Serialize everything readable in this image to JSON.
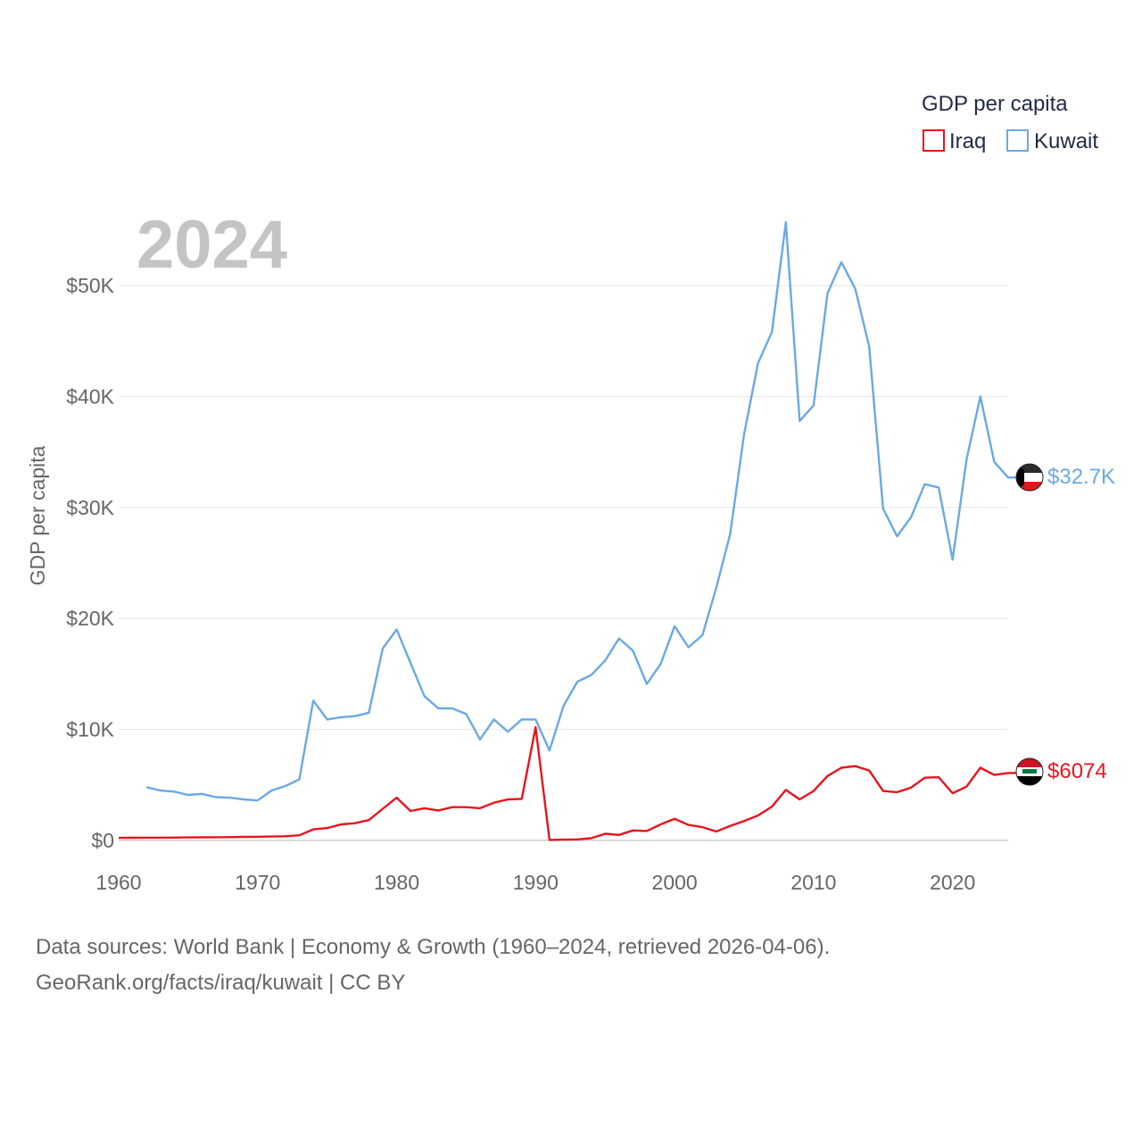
{
  "chart_data": {
    "type": "line",
    "title": "2024",
    "ylabel": "GDP per capita",
    "xlabel": "",
    "x_ticks": [
      "1960",
      "1970",
      "1980",
      "1990",
      "2000",
      "2010",
      "2020"
    ],
    "x_tick_values": [
      1960,
      1970,
      1980,
      1990,
      2000,
      2010,
      2020
    ],
    "y_ticks": [
      "$0",
      "$10K",
      "$20K",
      "$30K",
      "$40K",
      "$50K"
    ],
    "y_tick_values": [
      0,
      10000,
      20000,
      30000,
      40000,
      50000
    ],
    "xlim": [
      1960,
      2024
    ],
    "ylim": [
      0,
      50000
    ],
    "grid": true,
    "legend": {
      "title": "GDP per capita",
      "position": "top-right",
      "entries": [
        "Iraq",
        "Kuwait"
      ]
    },
    "series": [
      {
        "name": "Iraq",
        "color": "#e8141c",
        "end_label": "$6074",
        "flag": "iraq-flag",
        "x": [
          1960,
          1961,
          1962,
          1963,
          1964,
          1965,
          1966,
          1967,
          1968,
          1969,
          1970,
          1971,
          1972,
          1973,
          1974,
          1975,
          1976,
          1977,
          1978,
          1979,
          1980,
          1981,
          1982,
          1983,
          1984,
          1985,
          1986,
          1987,
          1988,
          1989,
          1990,
          1991,
          1992,
          1993,
          1994,
          1995,
          1996,
          1997,
          1998,
          1999,
          2000,
          2001,
          2002,
          2003,
          2004,
          2005,
          2006,
          2007,
          2008,
          2009,
          2010,
          2011,
          2012,
          2013,
          2014,
          2015,
          2016,
          2017,
          2018,
          2019,
          2020,
          2021,
          2022,
          2023,
          2024
        ],
        "values": [
          230,
          240,
          250,
          250,
          260,
          270,
          280,
          290,
          300,
          320,
          330,
          350,
          380,
          470,
          1000,
          1120,
          1450,
          1550,
          1830,
          2850,
          3850,
          2650,
          2900,
          2700,
          3000,
          3000,
          2900,
          3400,
          3700,
          3750,
          10200,
          50,
          70,
          100,
          200,
          600,
          500,
          900,
          850,
          1450,
          1950,
          1400,
          1200,
          800,
          1300,
          1750,
          2250,
          3050,
          4550,
          3700,
          4450,
          5800,
          6550,
          6700,
          6300,
          4450,
          4350,
          4750,
          5650,
          5700,
          4250,
          4850,
          6550,
          5900,
          6074
        ]
      },
      {
        "name": "Kuwait",
        "color": "#6aa9e3",
        "end_label": "$32.7K",
        "flag": "kuwait-flag",
        "x": [
          1962,
          1963,
          1964,
          1965,
          1966,
          1967,
          1968,
          1969,
          1970,
          1971,
          1972,
          1973,
          1974,
          1975,
          1976,
          1977,
          1978,
          1979,
          1980,
          1981,
          1982,
          1983,
          1984,
          1985,
          1986,
          1987,
          1988,
          1989,
          1990,
          1991,
          1992,
          1993,
          1994,
          1995,
          1996,
          1997,
          1998,
          1999,
          2000,
          2001,
          2002,
          2003,
          2004,
          2005,
          2006,
          2007,
          2008,
          2009,
          2010,
          2011,
          2012,
          2013,
          2014,
          2015,
          2016,
          2017,
          2018,
          2019,
          2020,
          2021,
          2022,
          2023,
          2024
        ],
        "values": [
          4800,
          4500,
          4400,
          4100,
          4200,
          3900,
          3850,
          3700,
          3600,
          4500,
          4900,
          5500,
          12600,
          10900,
          11100,
          11200,
          11500,
          17300,
          19000,
          16000,
          13000,
          11900,
          11900,
          11400,
          9100,
          10900,
          9800,
          10900,
          10900,
          8100,
          12100,
          14300,
          14900,
          16200,
          18200,
          17100,
          14100,
          15900,
          19300,
          17400,
          18500,
          22800,
          27600,
          36600,
          43000,
          45800,
          55700,
          37800,
          39200,
          49300,
          52100,
          49700,
          44500,
          29900,
          27400,
          29100,
          32100,
          31800,
          25300,
          34300,
          40000,
          34100,
          32700
        ]
      }
    ]
  },
  "source": {
    "line1": "Data sources: World Bank | Economy & Growth (1960–2024, retrieved 2026-04-06).",
    "line2": "GeoRank.org/facts/iraq/kuwait | CC BY"
  }
}
